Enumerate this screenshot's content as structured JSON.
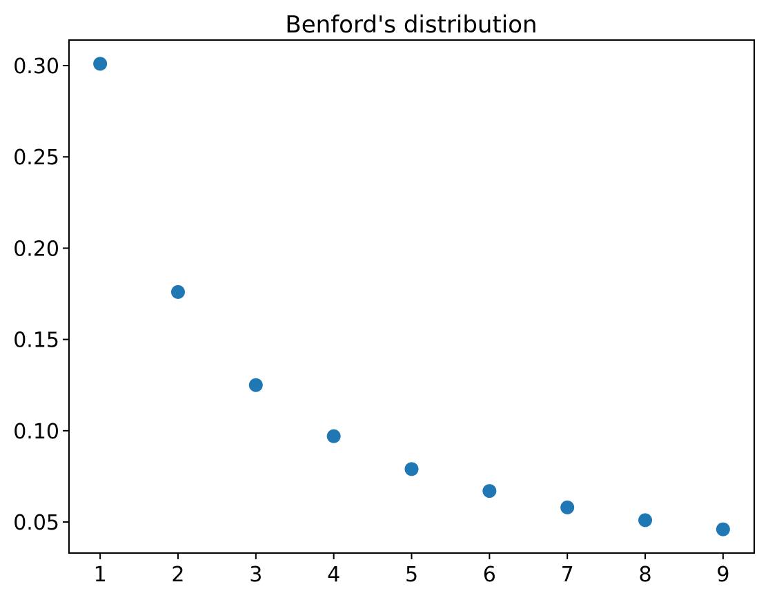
{
  "figure": {
    "background_color": "#ffffff"
  },
  "chart_data": {
    "type": "scatter",
    "title": "Benford's distribution",
    "xlabel": "",
    "ylabel": "",
    "x": [
      1,
      2,
      3,
      4,
      5,
      6,
      7,
      8,
      9
    ],
    "y": [
      0.301,
      0.176,
      0.125,
      0.097,
      0.079,
      0.067,
      0.058,
      0.051,
      0.046
    ],
    "xlim": [
      0.6,
      9.4
    ],
    "ylim": [
      0.033,
      0.314
    ],
    "xticks": [
      1,
      2,
      3,
      4,
      5,
      6,
      7,
      8,
      9
    ],
    "xtick_labels": [
      "1",
      "2",
      "3",
      "4",
      "5",
      "6",
      "7",
      "8",
      "9"
    ],
    "yticks": [
      0.05,
      0.1,
      0.15,
      0.2,
      0.25,
      0.3
    ],
    "ytick_labels": [
      "0.05",
      "0.10",
      "0.15",
      "0.20",
      "0.25",
      "0.30"
    ],
    "grid": false,
    "legend": null,
    "marker_color": "#1f77b4",
    "marker_radius_px": 10,
    "axis_color": "#000000",
    "text_color": "#000000"
  }
}
